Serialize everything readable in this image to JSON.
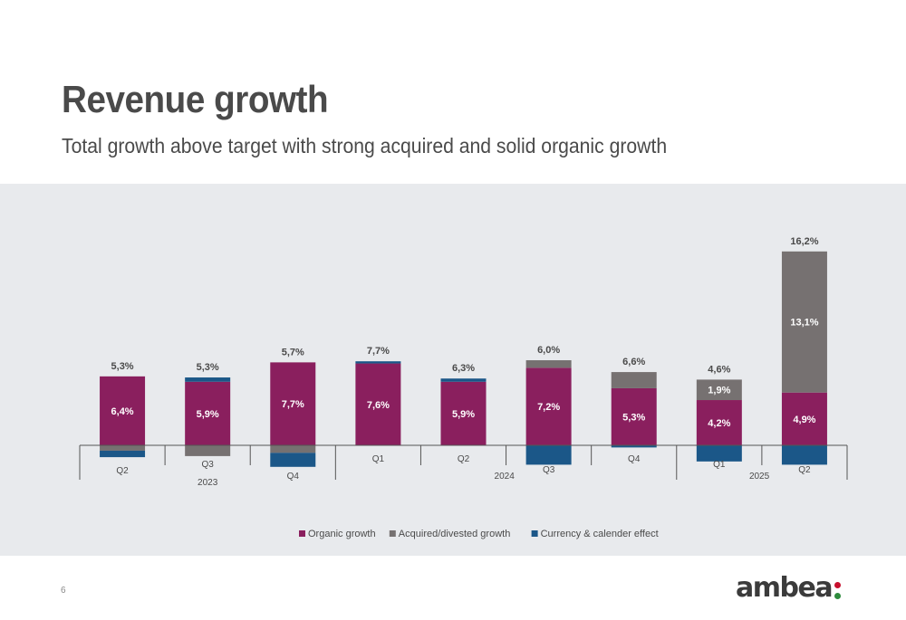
{
  "header": {
    "title": "Revenue growth",
    "subtitle": "Total growth above target with strong acquired and solid organic growth"
  },
  "footer": {
    "page_number": "6",
    "logo_text": "ambea"
  },
  "colors": {
    "organic": "#8a1f5e",
    "acquired": "#767171",
    "currency": "#1b5788",
    "panel_bg": "#e8eaed",
    "text": "#4a4a4a",
    "logo_red": "#c8102e",
    "logo_green": "#2e8b3d"
  },
  "chart_data": {
    "type": "bar",
    "stacked": true,
    "categories": [
      "Q2",
      "Q3",
      "Q4",
      "Q1",
      "Q2",
      "Q3",
      "Q4",
      "Q1",
      "Q2"
    ],
    "year_groups": [
      {
        "label": "2023",
        "quarters": [
          "Q2",
          "Q3",
          "Q4"
        ]
      },
      {
        "label": "2024",
        "quarters": [
          "Q1",
          "Q2",
          "Q3",
          "Q4"
        ]
      },
      {
        "label": "2025",
        "quarters": [
          "Q1",
          "Q2"
        ]
      }
    ],
    "totals": [
      "5,3%",
      "5,3%",
      "5,7%",
      "7,7%",
      "6,3%",
      "6,0%",
      "6,6%",
      "4,6%",
      "16,2%"
    ],
    "series": [
      {
        "name": "Organic growth",
        "values": [
          6.4,
          5.9,
          7.7,
          7.6,
          5.9,
          7.2,
          5.3,
          4.2,
          4.9
        ],
        "labels": [
          "6,4%",
          "5,9%",
          "7,7%",
          "7,6%",
          "5,9%",
          "7,2%",
          "5,3%",
          "4,2%",
          "4,9%"
        ]
      },
      {
        "name": "Acquired/divested growth",
        "values": [
          -0.5,
          -1.0,
          -0.7,
          0.0,
          0.0,
          0.7,
          1.5,
          1.9,
          13.1
        ],
        "labels": [
          "",
          "",
          "",
          "",
          "",
          "",
          "",
          "1,9%",
          "13,1%"
        ]
      },
      {
        "name": "Currency & calender effect",
        "values": [
          -0.6,
          0.4,
          -1.3,
          0.2,
          0.3,
          -1.8,
          -0.2,
          -1.5,
          -1.8
        ],
        "labels": [
          "",
          "",
          "",
          "",
          "",
          "",
          "",
          "",
          ""
        ]
      }
    ],
    "ylim": [
      -2.5,
      18
    ],
    "grid": false,
    "legend": "bottom"
  }
}
